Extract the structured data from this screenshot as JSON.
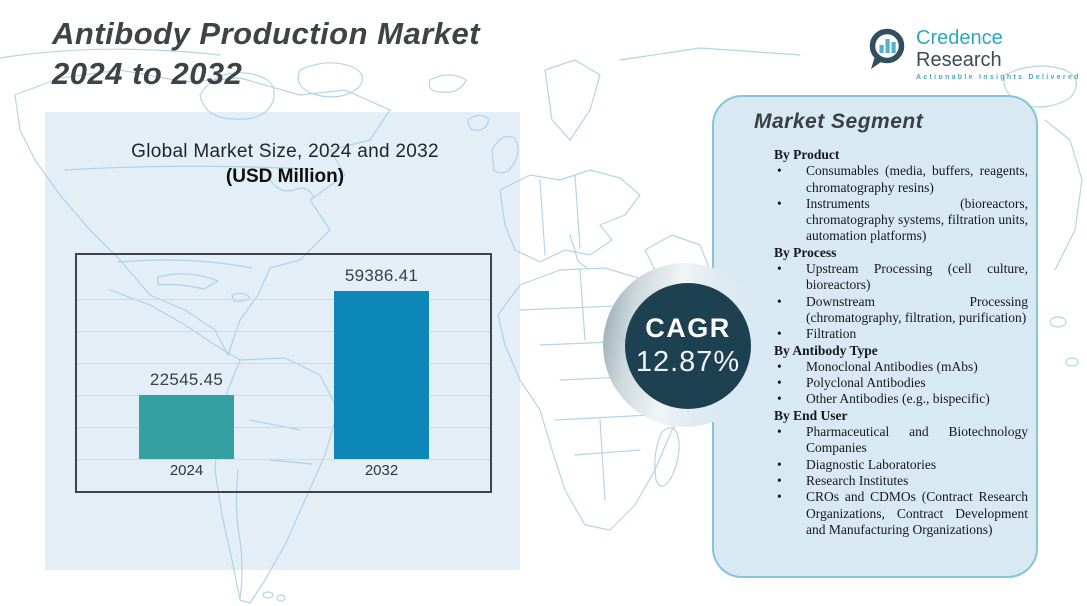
{
  "header": {
    "title_line1": "Antibody Production Market",
    "title_line2": "2024 to 2032"
  },
  "logo": {
    "brand_primary": "Credence",
    "brand_secondary": "Research",
    "tagline": "Actionable Insights Delivered"
  },
  "chart": {
    "heading": "Global Market Size, 2024 and 2032",
    "subheading": "(USD Million)"
  },
  "chart_data": {
    "type": "bar",
    "title": "Global Market Size, 2024 and 2032 (USD Million)",
    "categories": [
      "2024",
      "2032"
    ],
    "values": [
      22545.45,
      59386.41
    ],
    "value_labels": [
      "22545.45",
      "59386.41"
    ],
    "bar_colors": [
      "#35a0a2",
      "#0d86b8"
    ],
    "ylabel": "USD Million",
    "ylim": [
      0,
      60000
    ],
    "grid": true,
    "legend": false
  },
  "cagr": {
    "label": "CAGR",
    "value": "12.87%"
  },
  "market_segment": {
    "title": "Market Segment",
    "groups": [
      {
        "heading": "By Product",
        "items": [
          "Consumables (media, buffers, reagents, chromatography resins)",
          "Instruments (bioreactors, chromatography systems, filtration units, automation platforms)"
        ]
      },
      {
        "heading": "By Process",
        "items": [
          "Upstream Processing (cell culture, bioreactors)",
          "Downstream Processing (chromatography, filtration, purification)",
          "Filtration"
        ]
      },
      {
        "heading": "By Antibody Type",
        "items": [
          "Monoclonal Antibodies (mAbs)",
          "Polyclonal Antibodies",
          "Other Antibodies (e.g., bispecific)"
        ]
      },
      {
        "heading": "By End User",
        "items": [
          "Pharmaceutical and Biotechnology Companies",
          "Diagnostic Laboratories",
          "Research Institutes",
          "CROs and CDMOs (Contract Research Organizations, Contract Development and Manufacturing Organizations)"
        ]
      }
    ]
  },
  "colors": {
    "accent_teal": "#2aa9c2",
    "bar_2024": "#35a0a2",
    "bar_2032": "#0d86b8",
    "cagr_circle": "#1d4150",
    "panel_bg": "#d9e9f3",
    "panel_border": "#85c5d9",
    "chart_backdrop": "#e4eef6",
    "map_stroke": "#a6cee3",
    "title_text": "#3e4347"
  }
}
